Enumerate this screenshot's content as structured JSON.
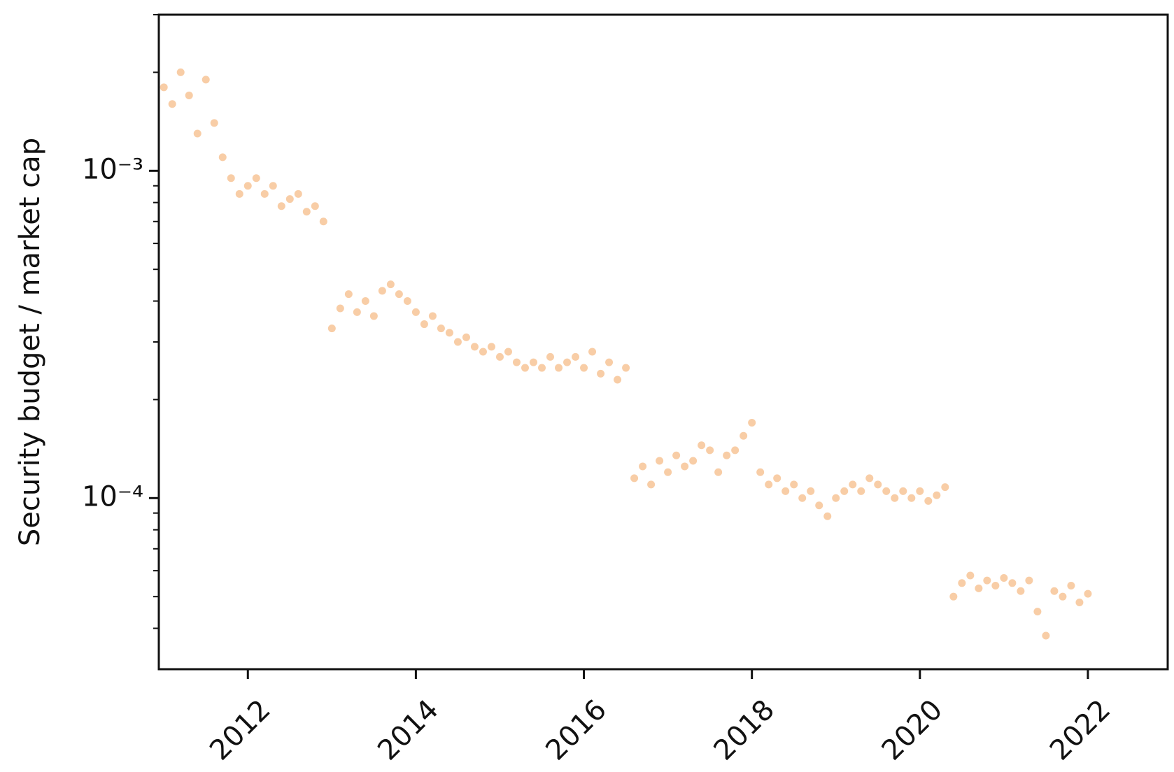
{
  "chart_data": {
    "type": "scatter",
    "ylabel": "Security budget / market cap",
    "yscale": "log",
    "color": "#f0913a",
    "xlim": [
      2010.94,
      2022.95
    ],
    "xticks": [
      2012,
      2014,
      2016,
      2018,
      2020,
      2022
    ],
    "ylim": [
      3e-05,
      0.003
    ],
    "yticks": [
      {
        "value": 0.0001,
        "label": "10⁻⁴"
      },
      {
        "value": 0.001,
        "label": "10⁻³"
      }
    ],
    "y_minor_ticks": [
      4e-05,
      5e-05,
      6e-05,
      7e-05,
      8e-05,
      9e-05,
      0.0002,
      0.0003,
      0.0004,
      0.0005,
      0.0006,
      0.0007,
      0.0008,
      0.0009,
      0.002,
      0.003
    ],
    "x": [
      2011.0,
      2011.1,
      2011.2,
      2011.3,
      2011.4,
      2011.5,
      2011.6,
      2011.7,
      2011.8,
      2011.9,
      2012.0,
      2012.1,
      2012.2,
      2012.3,
      2012.4,
      2012.5,
      2012.6,
      2012.7,
      2012.8,
      2012.9,
      2013.0,
      2013.1,
      2013.2,
      2013.3,
      2013.4,
      2013.5,
      2013.6,
      2013.7,
      2013.8,
      2013.9,
      2014.0,
      2014.1,
      2014.2,
      2014.3,
      2014.4,
      2014.5,
      2014.6,
      2014.7,
      2014.8,
      2014.9,
      2015.0,
      2015.1,
      2015.2,
      2015.3,
      2015.4,
      2015.5,
      2015.6,
      2015.7,
      2015.8,
      2015.9,
      2016.0,
      2016.1,
      2016.2,
      2016.3,
      2016.4,
      2016.5,
      2016.6,
      2016.7,
      2016.8,
      2016.9,
      2017.0,
      2017.1,
      2017.2,
      2017.3,
      2017.4,
      2017.5,
      2017.6,
      2017.7,
      2017.8,
      2017.9,
      2018.0,
      2018.1,
      2018.2,
      2018.3,
      2018.4,
      2018.5,
      2018.6,
      2018.7,
      2018.8,
      2018.9,
      2019.0,
      2019.1,
      2019.2,
      2019.3,
      2019.4,
      2019.5,
      2019.6,
      2019.7,
      2019.8,
      2019.9,
      2020.0,
      2020.1,
      2020.2,
      2020.3,
      2020.4,
      2020.5,
      2020.6,
      2020.7,
      2020.8,
      2020.9,
      2021.0,
      2021.1,
      2021.2,
      2021.3,
      2021.4,
      2021.5,
      2021.6,
      2021.7,
      2021.8,
      2021.9,
      2022.0
    ],
    "values": [
      0.0018,
      0.0016,
      0.002,
      0.0017,
      0.0013,
      0.0019,
      0.0014,
      0.0011,
      0.00095,
      0.00085,
      0.0009,
      0.00095,
      0.00085,
      0.0009,
      0.00078,
      0.00082,
      0.00085,
      0.00075,
      0.00078,
      0.0007,
      0.00033,
      0.00038,
      0.00042,
      0.00037,
      0.0004,
      0.00036,
      0.00043,
      0.00045,
      0.00042,
      0.0004,
      0.00037,
      0.00034,
      0.00036,
      0.00033,
      0.00032,
      0.0003,
      0.00031,
      0.00029,
      0.00028,
      0.00029,
      0.00027,
      0.00028,
      0.00026,
      0.00025,
      0.00026,
      0.00025,
      0.00027,
      0.00025,
      0.00026,
      0.00027,
      0.00025,
      0.00028,
      0.00024,
      0.00026,
      0.00023,
      0.00025,
      0.000115,
      0.000125,
      0.00011,
      0.00013,
      0.00012,
      0.000135,
      0.000125,
      0.00013,
      0.000145,
      0.00014,
      0.00012,
      0.000135,
      0.00014,
      0.000155,
      0.00017,
      0.00012,
      0.00011,
      0.000115,
      0.000105,
      0.00011,
      0.0001,
      0.000105,
      9.5e-05,
      8.8e-05,
      0.0001,
      0.000105,
      0.00011,
      0.000105,
      0.000115,
      0.00011,
      0.000105,
      0.0001,
      0.000105,
      0.0001,
      0.000105,
      9.8e-05,
      0.000102,
      0.000108,
      5e-05,
      5.5e-05,
      5.8e-05,
      5.3e-05,
      5.6e-05,
      5.4e-05,
      5.7e-05,
      5.5e-05,
      5.2e-05,
      5.6e-05,
      4.5e-05,
      3.8e-05,
      5.2e-05,
      5e-05,
      5.4e-05,
      4.8e-05,
      5.1e-05
    ]
  }
}
